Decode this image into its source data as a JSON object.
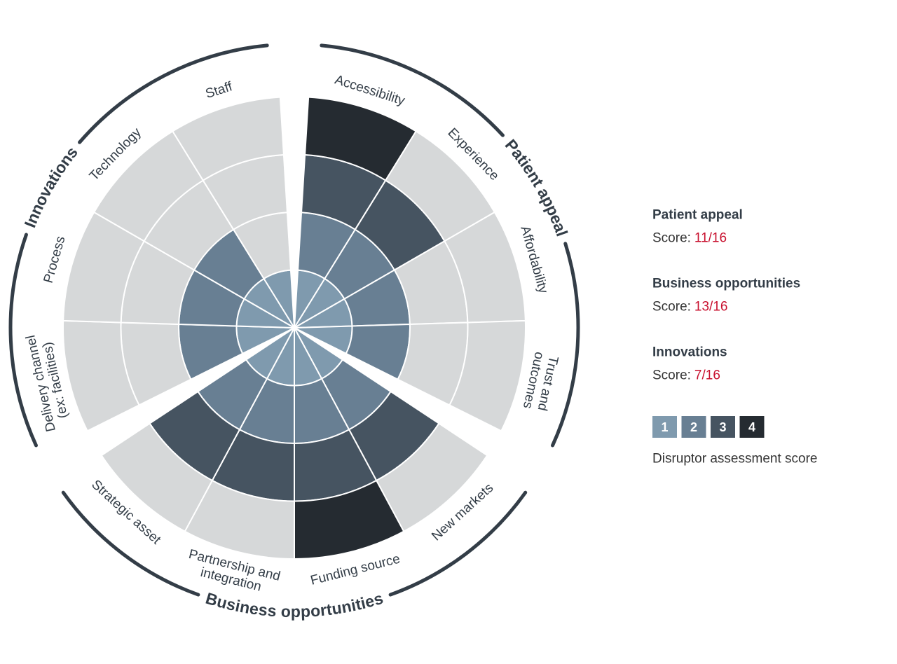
{
  "chart_data": {
    "type": "polar_area",
    "groups": [
      {
        "name": "Patient appeal",
        "score_label": "Score:",
        "score": "11/16",
        "categories": [
          "Accessibility",
          "Experience",
          "Affordability",
          "Trust and\noutcomes"
        ],
        "values": [
          4,
          3,
          2,
          2
        ]
      },
      {
        "name": "Business opportunities",
        "score_label": "Score:",
        "score": "13/16",
        "categories": [
          "New markets",
          "Funding source",
          "Partnership and\nintegration",
          "Strategic asset"
        ],
        "values": [
          3,
          4,
          3,
          3
        ]
      },
      {
        "name": "Innovations",
        "score_label": "Score:",
        "score": "7/16",
        "categories": [
          "Delivery channel\n(ex: facilities)",
          "Process",
          "Technology",
          "Staff"
        ],
        "values": [
          2,
          2,
          2,
          1
        ]
      }
    ],
    "levels": [
      1,
      2,
      3,
      4
    ],
    "level_colors": [
      "#7f9aae",
      "#687f93",
      "#465461",
      "#252b31"
    ],
    "empty_color": "#d6d8d9",
    "legend_title": "Disruptor assessment score"
  }
}
